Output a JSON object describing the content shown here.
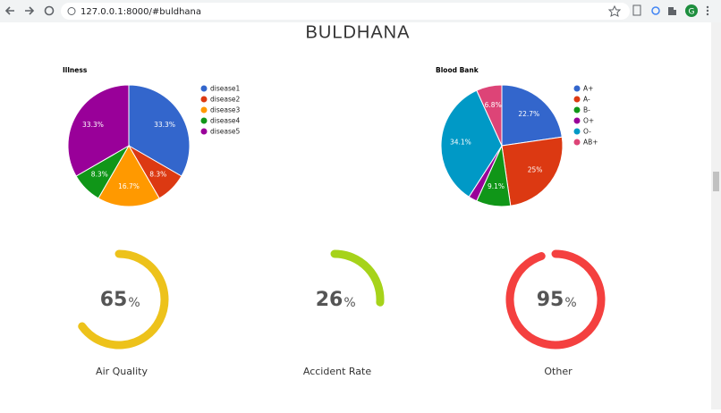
{
  "browser": {
    "url": "127.0.0.1:8000/#buldhana",
    "profile_initial": "G"
  },
  "heading": "BULDHANA",
  "chart_data": [
    {
      "type": "pie",
      "title": "Illness",
      "categories": [
        "disease1",
        "disease2",
        "disease3",
        "disease4",
        "disease5"
      ],
      "values": [
        33.3,
        8.3,
        16.7,
        8.3,
        33.3
      ],
      "value_labels": [
        "33.3%",
        "8.3%",
        "16.7%",
        "8.3%",
        "33.3%"
      ],
      "colors": [
        "#3366cc",
        "#dc3912",
        "#ff9900",
        "#109618",
        "#990099"
      ]
    },
    {
      "type": "pie",
      "title": "Blood Bank",
      "categories": [
        "A+",
        "A-",
        "B-",
        "O+",
        "O-",
        "AB+"
      ],
      "values": [
        22.7,
        25,
        9.1,
        2.3,
        34.1,
        6.8
      ],
      "value_labels": [
        "22.7%",
        "25%",
        "9.1%",
        null,
        "34.1%",
        "6.8%"
      ],
      "colors": [
        "#3366cc",
        "#dc3912",
        "#109618",
        "#990099",
        "#0099c6",
        "#dd4477"
      ]
    },
    {
      "type": "gauge",
      "title": "Air Quality",
      "value": 65,
      "unit": "%",
      "ylim": [
        0,
        100
      ],
      "color": "#edc21b"
    },
    {
      "type": "gauge",
      "title": "Accident Rate",
      "value": 26,
      "unit": "%",
      "ylim": [
        0,
        100
      ],
      "color": "#a6d31a"
    },
    {
      "type": "gauge",
      "title": "Other",
      "value": 95,
      "unit": "%",
      "ylim": [
        0,
        100
      ],
      "color": "#f4403f"
    }
  ]
}
